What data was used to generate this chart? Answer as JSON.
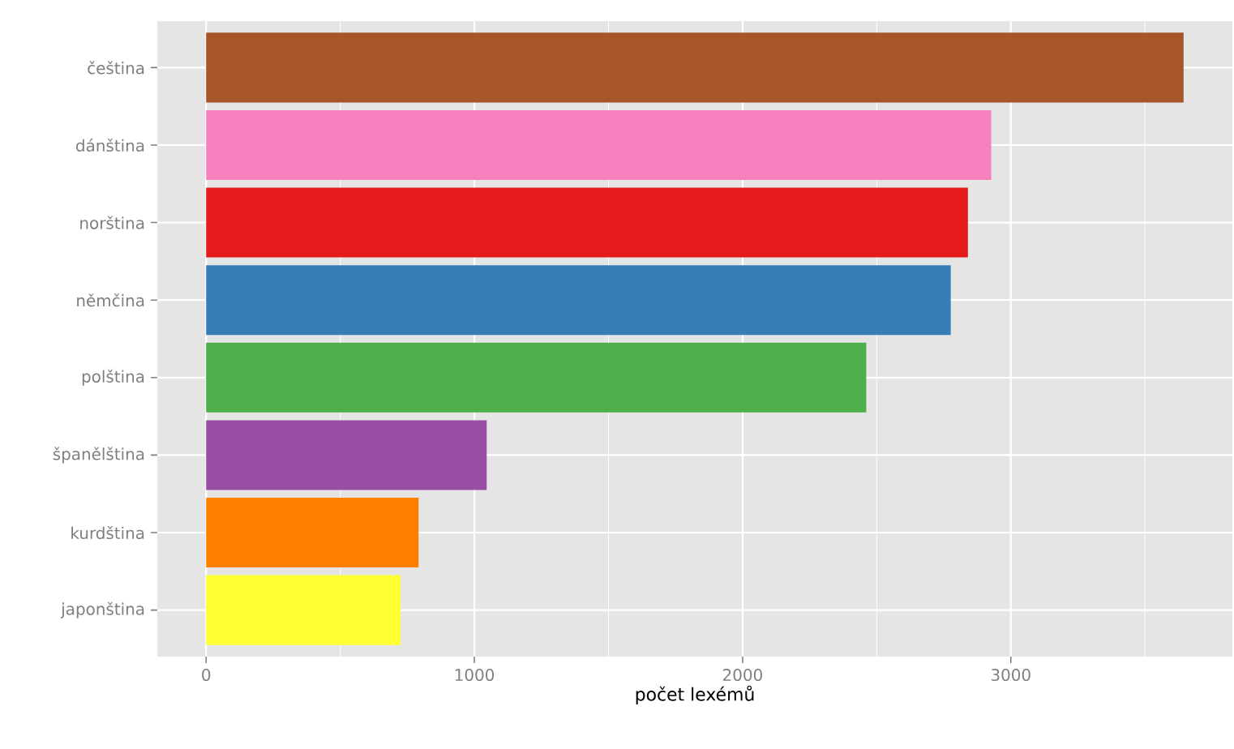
{
  "chart_data": {
    "type": "bar",
    "orientation": "horizontal",
    "xlabel": "počet lexémů",
    "categories": [
      "čeština",
      "dánština",
      "norština",
      "němčina",
      "polština",
      "španělština",
      "kurdština",
      "japonština"
    ],
    "values": [
      3644,
      2927,
      2840,
      2776,
      2461,
      1046,
      792,
      725
    ],
    "colors": [
      "#a65628",
      "#f781bf",
      "#e41a1c",
      "#377eb8",
      "#4daf4a",
      "#984ea3",
      "#ff7f00",
      "#ffff33"
    ],
    "xlim": [
      -182,
      3826
    ],
    "xticks": [
      0,
      {
        "value": 500,
        "label": null
      },
      1000,
      {
        "value": 1500,
        "label": null
      },
      2000,
      {
        "value": 2500,
        "label": null
      },
      3000,
      {
        "value": 3500,
        "label": null
      }
    ],
    "grid": true
  }
}
